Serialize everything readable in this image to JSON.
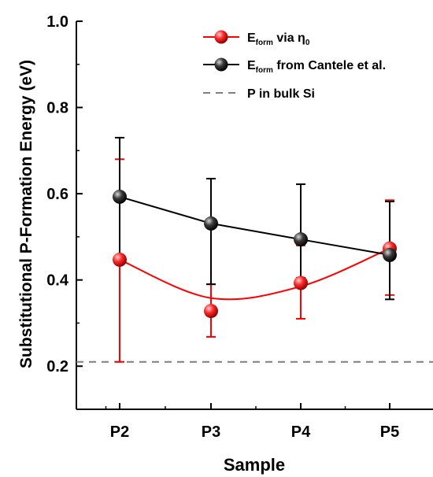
{
  "chart_data": {
    "type": "line",
    "xlabel": "Sample",
    "ylabel": "Substitutional P-Formation Energy (eV)",
    "categories": [
      "P2",
      "P3",
      "P4",
      "P5"
    ],
    "ylim": [
      0.1,
      1.0
    ],
    "yticks": [
      "0.2",
      "0.4",
      "0.6",
      "0.8",
      "1.0"
    ],
    "yticks_values": [
      0.2,
      0.4,
      0.6,
      0.8,
      1.0
    ],
    "grid": false,
    "legend_position": "top-right",
    "series": [
      {
        "name_main": "E",
        "name_sub": "form",
        "name_rest": " via η",
        "name_sub2": "0",
        "color": "#ff0000",
        "values": [
          0.447,
          0.328,
          0.393,
          0.473
        ],
        "err_low": [
          0.21,
          0.268,
          0.31,
          0.365
        ],
        "err_high": [
          0.68,
          0.39,
          0.48,
          0.585
        ],
        "smooth": true
      },
      {
        "name_main": "E",
        "name_sub": "form",
        "name_rest": " from Cantele et al.",
        "name_sub2": "",
        "color": "#000000",
        "values": [
          0.593,
          0.531,
          0.494,
          0.458
        ],
        "err_low": [
          0.45,
          0.39,
          0.405,
          0.355
        ],
        "err_high": [
          0.73,
          0.635,
          0.622,
          0.582
        ],
        "smooth": false
      }
    ],
    "reference_line": {
      "name": "P in bulk Si",
      "value": 0.21,
      "color": "#7f7f7f"
    }
  }
}
